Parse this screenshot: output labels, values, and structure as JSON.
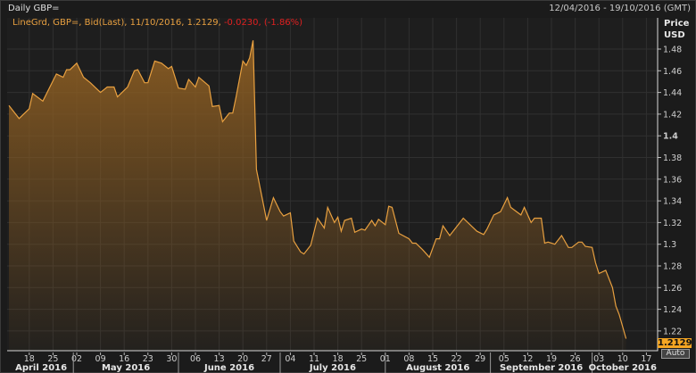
{
  "window": {
    "title": "Daily GBP=",
    "date_range": "12/04/2016 - 19/10/2016 (GMT)"
  },
  "legend": {
    "text": "LineGrd, GBP=, Bid(Last), 11/10/2016, 1.2129, ",
    "change": "-0.0230, (-1.86%)"
  },
  "axis_panel": {
    "price_label": "Price",
    "currency_label": "USD",
    "last_value": "1.2129",
    "auto_button": "Auto"
  },
  "colors": {
    "line": "#e8a040",
    "fill_top": "#8a5c22",
    "last_value_bg": "#f5a623",
    "negative": "#e02020",
    "background": "#1e1e1e",
    "grid": "#303030"
  },
  "chart_data": {
    "type": "area",
    "title": "Daily GBP=",
    "ylabel": "Price USD",
    "ylim": [
      1.2,
      1.5
    ],
    "xlim": [
      "2016-04-12",
      "2016-10-19"
    ],
    "grid": true,
    "legend": "top-left",
    "y_ticks": [
      "1.48",
      "1.46",
      "1.44",
      "1.42",
      "1.4",
      "1.38",
      "1.36",
      "1.34",
      "1.32",
      "1.3",
      "1.28",
      "1.26",
      "1.24",
      "1.22"
    ],
    "x_ticks": [
      {
        "date": "2016-04-18",
        "label": "18"
      },
      {
        "date": "2016-04-25",
        "label": "25"
      },
      {
        "date": "2016-05-02",
        "label": "02"
      },
      {
        "date": "2016-05-09",
        "label": "09"
      },
      {
        "date": "2016-05-16",
        "label": "16"
      },
      {
        "date": "2016-05-23",
        "label": "23"
      },
      {
        "date": "2016-05-30",
        "label": "30"
      },
      {
        "date": "2016-06-06",
        "label": "06"
      },
      {
        "date": "2016-06-13",
        "label": "13"
      },
      {
        "date": "2016-06-20",
        "label": "20"
      },
      {
        "date": "2016-06-27",
        "label": "27"
      },
      {
        "date": "2016-07-04",
        "label": "04"
      },
      {
        "date": "2016-07-11",
        "label": "11"
      },
      {
        "date": "2016-07-18",
        "label": "18"
      },
      {
        "date": "2016-07-25",
        "label": "25"
      },
      {
        "date": "2016-08-01",
        "label": "01"
      },
      {
        "date": "2016-08-08",
        "label": "08"
      },
      {
        "date": "2016-08-15",
        "label": "15"
      },
      {
        "date": "2016-08-22",
        "label": "22"
      },
      {
        "date": "2016-08-29",
        "label": "29"
      },
      {
        "date": "2016-09-05",
        "label": "05"
      },
      {
        "date": "2016-09-12",
        "label": "12"
      },
      {
        "date": "2016-09-19",
        "label": "19"
      },
      {
        "date": "2016-09-26",
        "label": "26"
      },
      {
        "date": "2016-10-03",
        "label": "03"
      },
      {
        "date": "2016-10-10",
        "label": "10"
      },
      {
        "date": "2016-10-17",
        "label": "17"
      }
    ],
    "months": [
      {
        "label": "April 2016",
        "start": "2016-04-12",
        "end": "2016-05-01"
      },
      {
        "label": "May 2016",
        "start": "2016-05-01",
        "end": "2016-06-01"
      },
      {
        "label": "June 2016",
        "start": "2016-06-01",
        "end": "2016-07-01"
      },
      {
        "label": "July 2016",
        "start": "2016-07-01",
        "end": "2016-08-01"
      },
      {
        "label": "August 2016",
        "start": "2016-08-01",
        "end": "2016-09-01"
      },
      {
        "label": "September 2016",
        "start": "2016-09-01",
        "end": "2016-10-01"
      },
      {
        "label": "October 2016",
        "start": "2016-10-01",
        "end": "2016-10-19"
      }
    ],
    "series": [
      {
        "points": [
          [
            "2016-04-12",
            1.428
          ],
          [
            "2016-04-15",
            1.416
          ],
          [
            "2016-04-18",
            1.425
          ],
          [
            "2016-04-19",
            1.439
          ],
          [
            "2016-04-22",
            1.432
          ],
          [
            "2016-04-26",
            1.457
          ],
          [
            "2016-04-28",
            1.454
          ],
          [
            "2016-04-29",
            1.461
          ],
          [
            "2016-04-30",
            1.461
          ],
          [
            "2016-05-02",
            1.467
          ],
          [
            "2016-05-04",
            1.454
          ],
          [
            "2016-05-06",
            1.449
          ],
          [
            "2016-05-09",
            1.44
          ],
          [
            "2016-05-11",
            1.445
          ],
          [
            "2016-05-13",
            1.445
          ],
          [
            "2016-05-14",
            1.436
          ],
          [
            "2016-05-17",
            1.445
          ],
          [
            "2016-05-19",
            1.46
          ],
          [
            "2016-05-20",
            1.461
          ],
          [
            "2016-05-22",
            1.449
          ],
          [
            "2016-05-23",
            1.449
          ],
          [
            "2016-05-25",
            1.469
          ],
          [
            "2016-05-27",
            1.467
          ],
          [
            "2016-05-29",
            1.462
          ],
          [
            "2016-05-30",
            1.464
          ],
          [
            "2016-06-01",
            1.444
          ],
          [
            "2016-06-03",
            1.443
          ],
          [
            "2016-06-04",
            1.452
          ],
          [
            "2016-06-06",
            1.445
          ],
          [
            "2016-06-07",
            1.454
          ],
          [
            "2016-06-10",
            1.446
          ],
          [
            "2016-06-11",
            1.427
          ],
          [
            "2016-06-13",
            1.428
          ],
          [
            "2016-06-14",
            1.413
          ],
          [
            "2016-06-16",
            1.421
          ],
          [
            "2016-06-17",
            1.421
          ],
          [
            "2016-06-18",
            1.436
          ],
          [
            "2016-06-20",
            1.469
          ],
          [
            "2016-06-21",
            1.465
          ],
          [
            "2016-06-22",
            1.472
          ],
          [
            "2016-06-23",
            1.488
          ],
          [
            "2016-06-24",
            1.369
          ],
          [
            "2016-06-27",
            1.322
          ],
          [
            "2016-06-29",
            1.343
          ],
          [
            "2016-07-01",
            1.33
          ],
          [
            "2016-07-02",
            1.326
          ],
          [
            "2016-07-04",
            1.329
          ],
          [
            "2016-07-05",
            1.303
          ],
          [
            "2016-07-07",
            1.293
          ],
          [
            "2016-07-08",
            1.291
          ],
          [
            "2016-07-10",
            1.299
          ],
          [
            "2016-07-12",
            1.324
          ],
          [
            "2016-07-14",
            1.315
          ],
          [
            "2016-07-15",
            1.334
          ],
          [
            "2016-07-17",
            1.32
          ],
          [
            "2016-07-18",
            1.325
          ],
          [
            "2016-07-19",
            1.312
          ],
          [
            "2016-07-20",
            1.322
          ],
          [
            "2016-07-22",
            1.324
          ],
          [
            "2016-07-23",
            1.311
          ],
          [
            "2016-07-25",
            1.314
          ],
          [
            "2016-07-26",
            1.313
          ],
          [
            "2016-07-28",
            1.322
          ],
          [
            "2016-07-29",
            1.317
          ],
          [
            "2016-07-30",
            1.323
          ],
          [
            "2016-08-01",
            1.318
          ],
          [
            "2016-08-02",
            1.335
          ],
          [
            "2016-08-03",
            1.334
          ],
          [
            "2016-08-05",
            1.31
          ],
          [
            "2016-08-08",
            1.305
          ],
          [
            "2016-08-09",
            1.301
          ],
          [
            "2016-08-10",
            1.301
          ],
          [
            "2016-08-12",
            1.295
          ],
          [
            "2016-08-14",
            1.288
          ],
          [
            "2016-08-16",
            1.305
          ],
          [
            "2016-08-17",
            1.305
          ],
          [
            "2016-08-18",
            1.317
          ],
          [
            "2016-08-20",
            1.308
          ],
          [
            "2016-08-24",
            1.324
          ],
          [
            "2016-08-28",
            1.312
          ],
          [
            "2016-08-30",
            1.309
          ],
          [
            "2016-08-31",
            1.314
          ],
          [
            "2016-09-02",
            1.327
          ],
          [
            "2016-09-04",
            1.33
          ],
          [
            "2016-09-06",
            1.343
          ],
          [
            "2016-09-07",
            1.334
          ],
          [
            "2016-09-10",
            1.327
          ],
          [
            "2016-09-11",
            1.334
          ],
          [
            "2016-09-13",
            1.32
          ],
          [
            "2016-09-14",
            1.324
          ],
          [
            "2016-09-16",
            1.324
          ],
          [
            "2016-09-17",
            1.301
          ],
          [
            "2016-09-18",
            1.302
          ],
          [
            "2016-09-20",
            1.3
          ],
          [
            "2016-09-22",
            1.308
          ],
          [
            "2016-09-24",
            1.297
          ],
          [
            "2016-09-25",
            1.297
          ],
          [
            "2016-09-27",
            1.302
          ],
          [
            "2016-09-28",
            1.302
          ],
          [
            "2016-09-29",
            1.298
          ],
          [
            "2016-10-01",
            1.297
          ],
          [
            "2016-10-02",
            1.283
          ],
          [
            "2016-10-03",
            1.273
          ],
          [
            "2016-10-05",
            1.276
          ],
          [
            "2016-10-07",
            1.26
          ],
          [
            "2016-10-08",
            1.243
          ],
          [
            "2016-10-09",
            1.235
          ],
          [
            "2016-10-11",
            1.2129
          ]
        ]
      }
    ]
  }
}
